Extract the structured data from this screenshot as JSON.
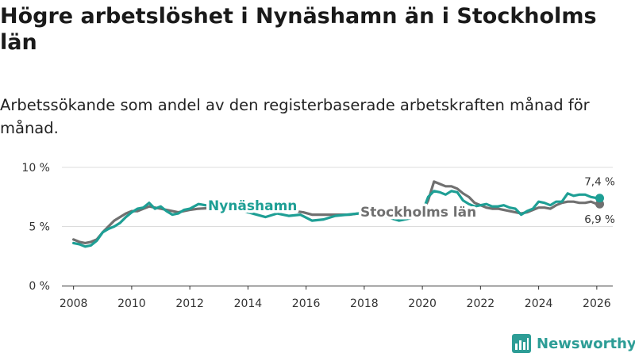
{
  "title": "Högre arbetslöshet i Nynäshamn än i Stockholms län",
  "subtitle": "Arbetssökande som andel av den registerbaserade arbetskraften månad för månad.",
  "brand": {
    "name": "Newsworthy",
    "icon": "bar-chart-logo-icon",
    "color": "#2d9d96"
  },
  "chart_data": {
    "type": "line",
    "x_unit": "year",
    "xlim": [
      2007.6,
      2026.55
    ],
    "ylim": [
      0,
      10
    ],
    "y_ticks": [
      0,
      5,
      10
    ],
    "y_tick_labels": [
      "0 %",
      "5 %",
      "10 %"
    ],
    "x_ticks": [
      2008,
      2010,
      2012,
      2014,
      2016,
      2018,
      2020,
      2022,
      2024,
      2026
    ],
    "x_tick_labels": [
      "2008",
      "2010",
      "2012",
      "2014",
      "2016",
      "2018",
      "2020",
      "2022",
      "2024",
      "2026"
    ],
    "grid": true,
    "series": [
      {
        "name": "Stockholms län",
        "label": "Stockholms län",
        "color": "#707070",
        "end_label": "6,9 %",
        "points": [
          [
            2008.0,
            3.9
          ],
          [
            2008.2,
            3.7
          ],
          [
            2008.4,
            3.6
          ],
          [
            2008.6,
            3.7
          ],
          [
            2008.8,
            3.9
          ],
          [
            2009.0,
            4.5
          ],
          [
            2009.2,
            5.0
          ],
          [
            2009.4,
            5.5
          ],
          [
            2009.6,
            5.8
          ],
          [
            2009.8,
            6.1
          ],
          [
            2010.0,
            6.3
          ],
          [
            2010.2,
            6.3
          ],
          [
            2010.4,
            6.5
          ],
          [
            2010.6,
            6.7
          ],
          [
            2010.8,
            6.6
          ],
          [
            2011.0,
            6.5
          ],
          [
            2011.2,
            6.4
          ],
          [
            2011.4,
            6.3
          ],
          [
            2011.6,
            6.2
          ],
          [
            2011.8,
            6.3
          ],
          [
            2012.0,
            6.4
          ],
          [
            2012.3,
            6.5
          ],
          [
            2013.0,
            6.6
          ],
          [
            2014.0,
            6.5
          ],
          [
            2015.0,
            6.4
          ],
          [
            2015.6,
            6.3
          ],
          [
            2015.9,
            6.2
          ],
          [
            2016.2,
            6.0
          ],
          [
            2016.6,
            6.0
          ],
          [
            2017.0,
            6.0
          ],
          [
            2017.5,
            6.0
          ],
          [
            2017.8,
            6.1
          ],
          [
            2018.5,
            6.0
          ],
          [
            2019.2,
            5.8
          ],
          [
            2019.8,
            5.9
          ],
          [
            2020.0,
            6.2
          ],
          [
            2020.2,
            7.2
          ],
          [
            2020.4,
            8.8
          ],
          [
            2020.6,
            8.6
          ],
          [
            2020.8,
            8.4
          ],
          [
            2021.0,
            8.4
          ],
          [
            2021.2,
            8.2
          ],
          [
            2021.4,
            7.8
          ],
          [
            2021.6,
            7.5
          ],
          [
            2021.8,
            7.0
          ],
          [
            2022.0,
            6.8
          ],
          [
            2022.2,
            6.6
          ],
          [
            2022.4,
            6.5
          ],
          [
            2022.6,
            6.5
          ],
          [
            2022.8,
            6.4
          ],
          [
            2023.0,
            6.3
          ],
          [
            2023.2,
            6.2
          ],
          [
            2023.4,
            6.1
          ],
          [
            2023.6,
            6.2
          ],
          [
            2023.8,
            6.4
          ],
          [
            2024.0,
            6.6
          ],
          [
            2024.2,
            6.6
          ],
          [
            2024.4,
            6.5
          ],
          [
            2024.6,
            6.8
          ],
          [
            2024.8,
            7.0
          ],
          [
            2025.0,
            7.1
          ],
          [
            2025.2,
            7.1
          ],
          [
            2025.4,
            7.0
          ],
          [
            2025.6,
            7.0
          ],
          [
            2025.8,
            7.1
          ],
          [
            2026.0,
            6.9
          ],
          [
            2026.1,
            6.9
          ]
        ]
      },
      {
        "name": "Nynäshamn",
        "label": "Nynäshamn",
        "color": "#1e9f95",
        "end_label": "7,4 %",
        "points": [
          [
            2008.0,
            3.6
          ],
          [
            2008.2,
            3.5
          ],
          [
            2008.4,
            3.3
          ],
          [
            2008.6,
            3.4
          ],
          [
            2008.8,
            3.8
          ],
          [
            2009.0,
            4.5
          ],
          [
            2009.2,
            4.8
          ],
          [
            2009.4,
            5.0
          ],
          [
            2009.6,
            5.3
          ],
          [
            2009.8,
            5.8
          ],
          [
            2010.0,
            6.2
          ],
          [
            2010.2,
            6.5
          ],
          [
            2010.4,
            6.6
          ],
          [
            2010.6,
            7.0
          ],
          [
            2010.8,
            6.5
          ],
          [
            2011.0,
            6.7
          ],
          [
            2011.2,
            6.3
          ],
          [
            2011.4,
            6.0
          ],
          [
            2011.6,
            6.1
          ],
          [
            2011.8,
            6.4
          ],
          [
            2012.0,
            6.5
          ],
          [
            2012.3,
            6.9
          ],
          [
            2013.0,
            6.6
          ],
          [
            2014.0,
            6.2
          ],
          [
            2014.6,
            5.8
          ],
          [
            2015.0,
            6.1
          ],
          [
            2015.4,
            5.9
          ],
          [
            2015.8,
            6.0
          ],
          [
            2016.2,
            5.5
          ],
          [
            2016.6,
            5.6
          ],
          [
            2017.0,
            5.9
          ],
          [
            2017.4,
            6.0
          ],
          [
            2017.8,
            6.1
          ],
          [
            2018.5,
            6.0
          ],
          [
            2019.2,
            5.5
          ],
          [
            2019.6,
            5.7
          ],
          [
            2020.0,
            6.2
          ],
          [
            2020.2,
            7.5
          ],
          [
            2020.4,
            8.0
          ],
          [
            2020.6,
            7.9
          ],
          [
            2020.8,
            7.7
          ],
          [
            2021.0,
            8.0
          ],
          [
            2021.2,
            7.9
          ],
          [
            2021.4,
            7.2
          ],
          [
            2021.6,
            6.9
          ],
          [
            2021.8,
            6.7
          ],
          [
            2022.0,
            6.8
          ],
          [
            2022.2,
            6.9
          ],
          [
            2022.4,
            6.7
          ],
          [
            2022.6,
            6.7
          ],
          [
            2022.8,
            6.8
          ],
          [
            2023.0,
            6.6
          ],
          [
            2023.2,
            6.5
          ],
          [
            2023.4,
            6.0
          ],
          [
            2023.6,
            6.3
          ],
          [
            2023.8,
            6.5
          ],
          [
            2024.0,
            7.1
          ],
          [
            2024.2,
            7.0
          ],
          [
            2024.4,
            6.8
          ],
          [
            2024.6,
            7.1
          ],
          [
            2024.8,
            7.1
          ],
          [
            2025.0,
            7.8
          ],
          [
            2025.2,
            7.6
          ],
          [
            2025.4,
            7.7
          ],
          [
            2025.6,
            7.7
          ],
          [
            2025.8,
            7.5
          ],
          [
            2026.0,
            7.4
          ],
          [
            2026.1,
            7.4
          ]
        ]
      }
    ]
  }
}
